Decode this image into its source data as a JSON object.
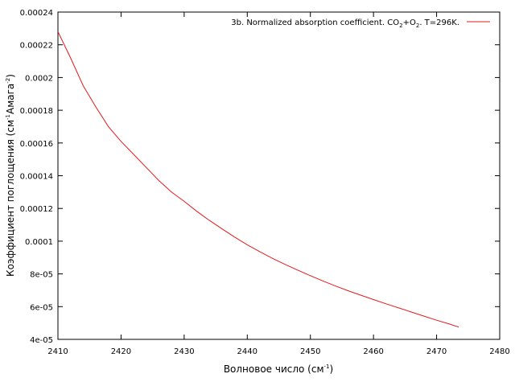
{
  "chart_data": {
    "type": "line",
    "xlabel": {
      "main": "Волновое число (см",
      "sup": "-1",
      "end": ")"
    },
    "ylabel": {
      "main": "Коэффициент поглощения (см",
      "sup1": "-1",
      "mid": "Амага",
      "sup2": "-2",
      "end": ")"
    },
    "xlim": [
      2410,
      2480
    ],
    "ylim": [
      4e-05,
      0.00024
    ],
    "x_ticks": [
      2410,
      2420,
      2430,
      2440,
      2450,
      2460,
      2470,
      2480
    ],
    "x_tick_labels": [
      "2410",
      "2420",
      "2430",
      "2440",
      "2450",
      "2460",
      "2470",
      "2480"
    ],
    "y_ticks": [
      4e-05,
      6e-05,
      8e-05,
      0.0001,
      0.00012,
      0.00014,
      0.00016,
      0.00018,
      0.0002,
      0.00022,
      0.00024
    ],
    "y_tick_labels": [
      "4e-05",
      "6e-05",
      "8e-05",
      "0.0001",
      "0.00012",
      "0.00014",
      "0.00016",
      "0.00018",
      "0.0002",
      "0.00022",
      "0.00024"
    ],
    "grid": false,
    "legend_position": "top-right",
    "series": [
      {
        "name": {
          "p1": "3b. Normalized absorption coefficient. CO",
          "s1": "2",
          "p2": "+O",
          "s2": "2",
          "p3": ". T=296K."
        },
        "color": "#e41a1c",
        "x": [
          2410,
          2412,
          2414,
          2416,
          2418,
          2420,
          2422,
          2424,
          2426,
          2428,
          2430,
          2432,
          2434,
          2436,
          2438,
          2440,
          2442,
          2444,
          2446,
          2448,
          2450,
          2452,
          2454,
          2456,
          2458,
          2460,
          2462,
          2464,
          2466,
          2468,
          2470,
          2472,
          2473.5
        ],
        "y": [
          0.000228,
          0.000212,
          0.000195,
          0.000182,
          0.00017,
          0.000161,
          0.000153,
          0.000145,
          0.000137,
          0.00013,
          0.0001243,
          0.0001183,
          0.0001127,
          0.0001075,
          0.0001025,
          9.78e-05,
          9.35e-05,
          8.95e-05,
          8.58e-05,
          8.23e-05,
          7.89e-05,
          7.57e-05,
          7.26e-05,
          6.97e-05,
          6.7e-05,
          6.43e-05,
          6.17e-05,
          5.92e-05,
          5.67e-05,
          5.42e-05,
          5.17e-05,
          4.94e-05,
          4.75e-05
        ]
      }
    ]
  }
}
